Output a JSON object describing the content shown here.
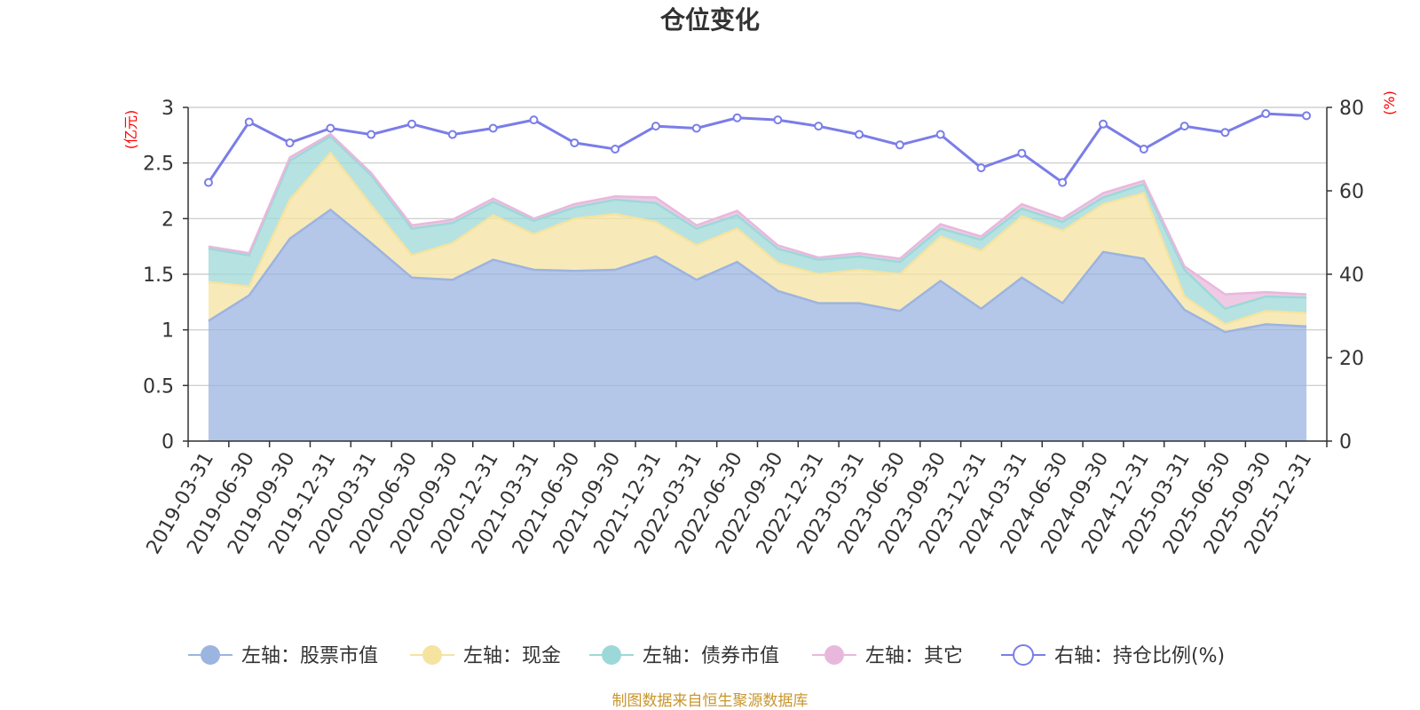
{
  "chart_data": {
    "type": "area",
    "title": "仓位变化",
    "left_axis": {
      "unit": "(亿元)",
      "ylim": [
        0,
        3
      ],
      "ticks": [
        "0",
        "0.5",
        "1",
        "1.5",
        "2",
        "2.5",
        "3"
      ]
    },
    "right_axis": {
      "unit": "(%)",
      "ylim": [
        0,
        80
      ],
      "ticks": [
        "0",
        "20",
        "40",
        "60",
        "80"
      ]
    },
    "categories": [
      "2019-03-31",
      "2019-06-30",
      "2019-09-30",
      "2019-12-31",
      "2020-03-31",
      "2020-06-30",
      "2020-09-30",
      "2020-12-31",
      "2021-03-31",
      "2021-06-30",
      "2021-09-30",
      "2021-12-31",
      "2022-03-31",
      "2022-06-30",
      "2022-09-30",
      "2022-12-31",
      "2023-03-31",
      "2023-06-30",
      "2023-09-30",
      "2023-12-31",
      "2024-03-31",
      "2024-06-30",
      "2024-09-30",
      "2024-12-31",
      "2025-03-31",
      "2025-06-30",
      "2025-09-30",
      "2025-12-31"
    ],
    "stacked_series": [
      {
        "name": "左轴：股票市值",
        "color": "#9cb4e0",
        "values": [
          1.08,
          1.31,
          1.82,
          2.08,
          1.78,
          1.47,
          1.45,
          1.63,
          1.54,
          1.53,
          1.54,
          1.66,
          1.45,
          1.61,
          1.35,
          1.24,
          1.24,
          1.17,
          1.44,
          1.19,
          1.47,
          1.24,
          1.7,
          1.64,
          1.18,
          0.98,
          1.05,
          1.03
        ]
      },
      {
        "name": "左轴：现金",
        "color": "#f5e3a0",
        "values": [
          0.35,
          0.08,
          0.35,
          0.51,
          0.34,
          0.2,
          0.33,
          0.4,
          0.32,
          0.47,
          0.5,
          0.31,
          0.31,
          0.3,
          0.25,
          0.26,
          0.3,
          0.33,
          0.4,
          0.52,
          0.55,
          0.65,
          0.43,
          0.59,
          0.12,
          0.07,
          0.12,
          0.12
        ]
      },
      {
        "name": "左轴：债券市值",
        "color": "#9dd8d8",
        "values": [
          0.3,
          0.28,
          0.35,
          0.15,
          0.27,
          0.24,
          0.18,
          0.12,
          0.12,
          0.1,
          0.13,
          0.17,
          0.15,
          0.12,
          0.13,
          0.13,
          0.12,
          0.11,
          0.07,
          0.1,
          0.07,
          0.08,
          0.06,
          0.08,
          0.24,
          0.14,
          0.13,
          0.14
        ]
      },
      {
        "name": "左轴：其它",
        "color": "#e8b8dc",
        "values": [
          0.02,
          0.02,
          0.03,
          0.02,
          0.02,
          0.03,
          0.03,
          0.03,
          0.02,
          0.03,
          0.03,
          0.05,
          0.03,
          0.04,
          0.03,
          0.02,
          0.03,
          0.03,
          0.04,
          0.03,
          0.04,
          0.03,
          0.04,
          0.03,
          0.03,
          0.13,
          0.04,
          0.03
        ]
      }
    ],
    "line_series": {
      "name": "右轴：持仓比例(%)",
      "color": "#7a7de8",
      "values": [
        62,
        76.5,
        71.5,
        75,
        73.5,
        76,
        73.5,
        75,
        77,
        71.5,
        70,
        75.5,
        75,
        77.5,
        77,
        75.5,
        73.5,
        71,
        73.5,
        65.5,
        69,
        62,
        76,
        70,
        75.5,
        74,
        78.5,
        78
      ]
    },
    "legend_position": "bottom",
    "grid": true
  },
  "legend": [
    {
      "label": "左轴：股票市值"
    },
    {
      "label": "左轴：现金"
    },
    {
      "label": "左轴：债券市值"
    },
    {
      "label": "左轴：其它"
    },
    {
      "label": "右轴：持仓比例(%)"
    }
  ],
  "source_note": "制图数据来自恒生聚源数据库"
}
